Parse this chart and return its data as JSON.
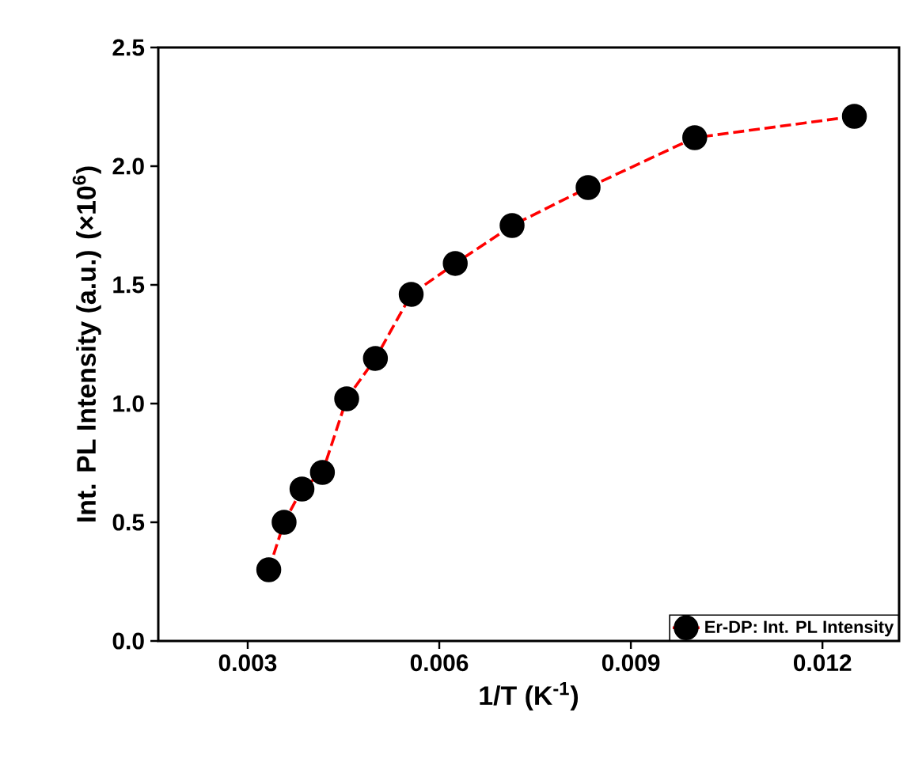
{
  "chart_data": {
    "type": "line",
    "xlabel": "1/T (K$^{-1}$)",
    "ylabel": "Int. PL Intensity (a.u.) (×10$^{6}$)",
    "series": [
      {
        "name": "Er-DP: Int. PL Intensity",
        "color": "#ff0000",
        "x": [
          0.00333,
          0.00357,
          0.00385,
          0.00417,
          0.00455,
          0.005,
          0.00556,
          0.00625,
          0.00714,
          0.00833,
          0.01,
          0.0125
        ],
        "values": [
          0.3,
          0.5,
          0.64,
          0.71,
          1.02,
          1.19,
          1.46,
          1.59,
          1.75,
          1.91,
          2.12,
          2.21
        ]
      }
    ],
    "xlim": [
      0.0016,
      0.0132
    ],
    "ylim": [
      0,
      2.5
    ],
    "xticks": [
      0.003,
      0.006,
      0.009,
      0.012
    ],
    "yticks": [
      {
        "value": 0,
        "label": "0.0"
      },
      {
        "value": 0.5,
        "label": "0.5"
      },
      {
        "value": 1,
        "label": "1.0"
      },
      {
        "value": 1.5,
        "label": "1.5"
      },
      {
        "value": 2,
        "label": "2.0"
      },
      {
        "value": 2.5,
        "label": "2.5"
      }
    ],
    "legend": "bottom right",
    "marker": "circle",
    "line_style": "dashed",
    "grid": false
  }
}
